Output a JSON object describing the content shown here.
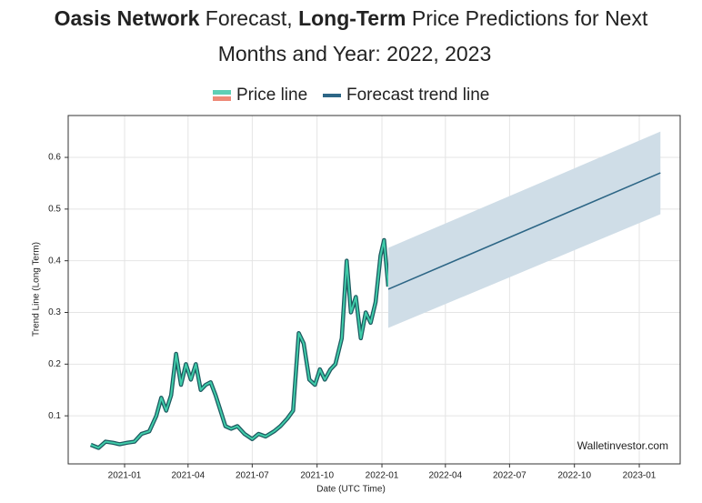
{
  "chart_data": {
    "type": "line",
    "title_lines": [
      [
        {
          "text": "Oasis Network",
          "bold": true
        },
        {
          "text": " Forecast, ",
          "bold": false
        },
        {
          "text": "Long-Term",
          "bold": true
        },
        {
          "text": " Price Predictions for Next",
          "bold": false
        }
      ],
      [
        {
          "text": "Months and Year: 2022, 2023",
          "bold": false
        }
      ]
    ],
    "x_label": "Date (UTC Time)",
    "y_label": "Trend Line (Long Term)",
    "watermark": "Walletinvestor.com",
    "xlim": [
      "2020-10-13",
      "2023-02-28"
    ],
    "xticks": [
      "2021-01",
      "2021-04",
      "2021-07",
      "2021-10",
      "2022-01",
      "2022-04",
      "2022-07",
      "2022-10",
      "2023-01"
    ],
    "ylim": [
      0.007,
      0.681
    ],
    "yticks": [
      0.1,
      0.2,
      0.3,
      0.4,
      0.5,
      0.6
    ],
    "grid": true,
    "series": [
      {
        "name": "Price line",
        "color": "#3fcca9",
        "edge_color": "#1d5a60",
        "x": [
          "2020-11-14",
          "2020-11-25",
          "2020-12-05",
          "2020-12-15",
          "2020-12-25",
          "2021-01-05",
          "2021-01-15",
          "2021-01-25",
          "2021-02-05",
          "2021-02-15",
          "2021-02-22",
          "2021-03-01",
          "2021-03-08",
          "2021-03-15",
          "2021-03-22",
          "2021-03-29",
          "2021-04-05",
          "2021-04-12",
          "2021-04-19",
          "2021-04-26",
          "2021-05-03",
          "2021-05-10",
          "2021-05-17",
          "2021-05-24",
          "2021-06-01",
          "2021-06-10",
          "2021-06-20",
          "2021-07-01",
          "2021-07-10",
          "2021-07-20",
          "2021-08-01",
          "2021-08-10",
          "2021-08-20",
          "2021-08-28",
          "2021-09-05",
          "2021-09-12",
          "2021-09-20",
          "2021-09-28",
          "2021-10-05",
          "2021-10-12",
          "2021-10-20",
          "2021-10-27",
          "2021-11-05",
          "2021-11-12",
          "2021-11-18",
          "2021-11-25",
          "2021-12-02",
          "2021-12-09",
          "2021-12-16",
          "2021-12-23",
          "2021-12-30",
          "2022-01-04",
          "2022-01-10"
        ],
        "values": [
          0.044,
          0.038,
          0.05,
          0.048,
          0.045,
          0.048,
          0.05,
          0.065,
          0.07,
          0.1,
          0.135,
          0.11,
          0.14,
          0.22,
          0.16,
          0.2,
          0.17,
          0.2,
          0.15,
          0.16,
          0.165,
          0.14,
          0.11,
          0.08,
          0.075,
          0.08,
          0.065,
          0.055,
          0.065,
          0.06,
          0.07,
          0.08,
          0.095,
          0.11,
          0.26,
          0.24,
          0.17,
          0.16,
          0.19,
          0.17,
          0.19,
          0.2,
          0.25,
          0.4,
          0.3,
          0.33,
          0.25,
          0.3,
          0.28,
          0.32,
          0.41,
          0.44,
          0.35
        ]
      },
      {
        "name": "Forecast trend line",
        "color": "#2d6686",
        "band_color": "#cfdde7",
        "x": [
          "2022-01-10",
          "2023-01-31"
        ],
        "values": [
          0.345,
          0.57
        ],
        "lower": [
          0.27,
          0.49
        ],
        "upper": [
          0.425,
          0.65
        ]
      }
    ]
  }
}
